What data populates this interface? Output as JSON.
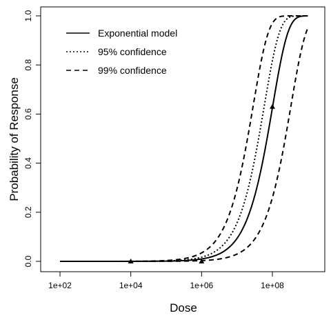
{
  "chart_data": {
    "type": "line",
    "title": "",
    "xlabel": "Dose",
    "ylabel": "Probability of Response",
    "x_scale": "log10",
    "xlim": [
      100,
      1000000000
    ],
    "ylim": [
      0,
      1
    ],
    "x_ticks": [
      {
        "value": 100,
        "label": "1e+02"
      },
      {
        "value": 10000,
        "label": "1e+04"
      },
      {
        "value": 1000000,
        "label": "1e+06"
      },
      {
        "value": 100000000,
        "label": "1e+08"
      }
    ],
    "y_ticks": [
      {
        "value": 0.0,
        "label": "0.0"
      },
      {
        "value": 0.2,
        "label": "0.2"
      },
      {
        "value": 0.4,
        "label": "0.4"
      },
      {
        "value": 0.6,
        "label": "0.6"
      },
      {
        "value": 0.8,
        "label": "0.8"
      },
      {
        "value": 1.0,
        "label": "1.0"
      }
    ],
    "grid": false,
    "legend_position": "top-left",
    "series": [
      {
        "name": "Exponential model",
        "line_style": "solid",
        "k": 9.8e-09,
        "x_range": [
          100,
          1000000000
        ]
      },
      {
        "name": "95% confidence",
        "line_style": "dotted",
        "k": 1.7e-08,
        "x_range": [
          100,
          1000000000
        ]
      },
      {
        "name": "99% confidence",
        "line_style": "dashed",
        "k": 3.5e-08,
        "x_range": [
          100,
          1000000000
        ]
      },
      {
        "name": "",
        "line_style": "dashed",
        "k": 3e-09,
        "x_range": [
          100,
          1000000000
        ]
      }
    ],
    "observed_points": [
      {
        "x": 10000,
        "y": 0.0
      },
      {
        "x": 1000000,
        "y": 0.0
      },
      {
        "x": 100000000,
        "y": 0.63
      }
    ],
    "colors": {
      "line": "#000000",
      "background": "#ffffff"
    }
  }
}
